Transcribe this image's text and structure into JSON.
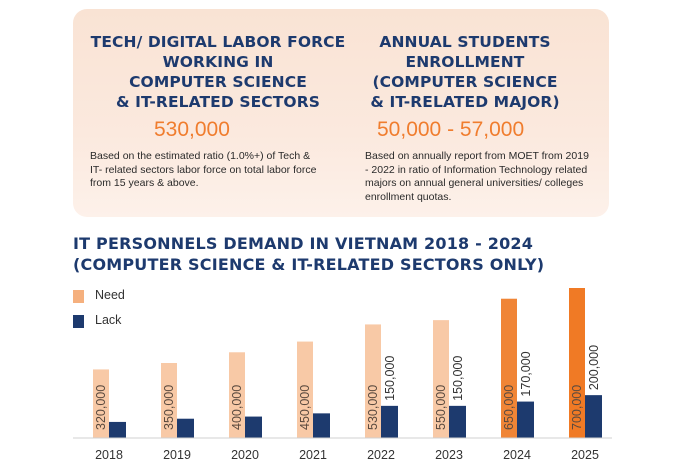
{
  "stats": [
    {
      "title_lines": [
        "TECH/ DIGITAL LABOR FORCE",
        "WORKING IN",
        "COMPUTER SCIENCE",
        "& IT-RELATED SECTORS"
      ],
      "value": "530,000",
      "note_lines": [
        "Based on the estimated ratio (1.0%+) of Tech &",
        "IT- related sectors labor force on total labor force",
        "from 15 years & above."
      ]
    },
    {
      "title_lines": [
        "ANNUAL STUDENTS",
        "ENROLLMENT",
        "(COMPUTER SCIENCE",
        "& IT-RELATED MAJOR)"
      ],
      "value": "50,000 - 57,000",
      "note_lines": [
        "Based on annually report from MOET from 2019",
        "- 2022 in ratio of Information Technology related",
        "majors on annual general universities/ colleges",
        "enrollment quotas."
      ]
    }
  ],
  "colors": {
    "accent_orange": "#f07d2e",
    "navy": "#1d3a6e",
    "panel_bg": "#fbe9de"
  },
  "chart_data": {
    "type": "bar",
    "title_lines": [
      "IT PERSONNELS DEMAND IN VIETNAM 2018 - 2024",
      "(COMPUTER SCIENCE & IT-RELATED SECTORS ONLY)"
    ],
    "categories": [
      "2018",
      "2019",
      "2020",
      "2021",
      "2022",
      "2023",
      "2024",
      "2025"
    ],
    "series": [
      {
        "name": "Need",
        "color": "#f5b07e",
        "colors_by_category": [
          "#f8c9a6",
          "#f8c9a6",
          "#f8c9a6",
          "#f8c9a6",
          "#f8c9a6",
          "#f8c9a6",
          "#f08536",
          "#f07a25"
        ],
        "values": [
          320000,
          350000,
          400000,
          450000,
          530000,
          550000,
          650000,
          700000
        ],
        "labels": [
          "320,000",
          "350,000",
          "400,000",
          "450,000",
          "530,000",
          "550,000",
          "650,000",
          "700,000"
        ]
      },
      {
        "name": "Lack",
        "color": "#1d3a6e",
        "values": [
          75000,
          90000,
          100000,
          115000,
          150000,
          150000,
          170000,
          200000
        ],
        "labels": [
          "",
          "",
          "",
          "",
          "150,000",
          "150,000",
          "170,000",
          "200,000"
        ]
      }
    ],
    "ylim": [
      0,
      700000
    ],
    "grid": false,
    "legend": "top-left",
    "xlabel": "",
    "ylabel": ""
  }
}
